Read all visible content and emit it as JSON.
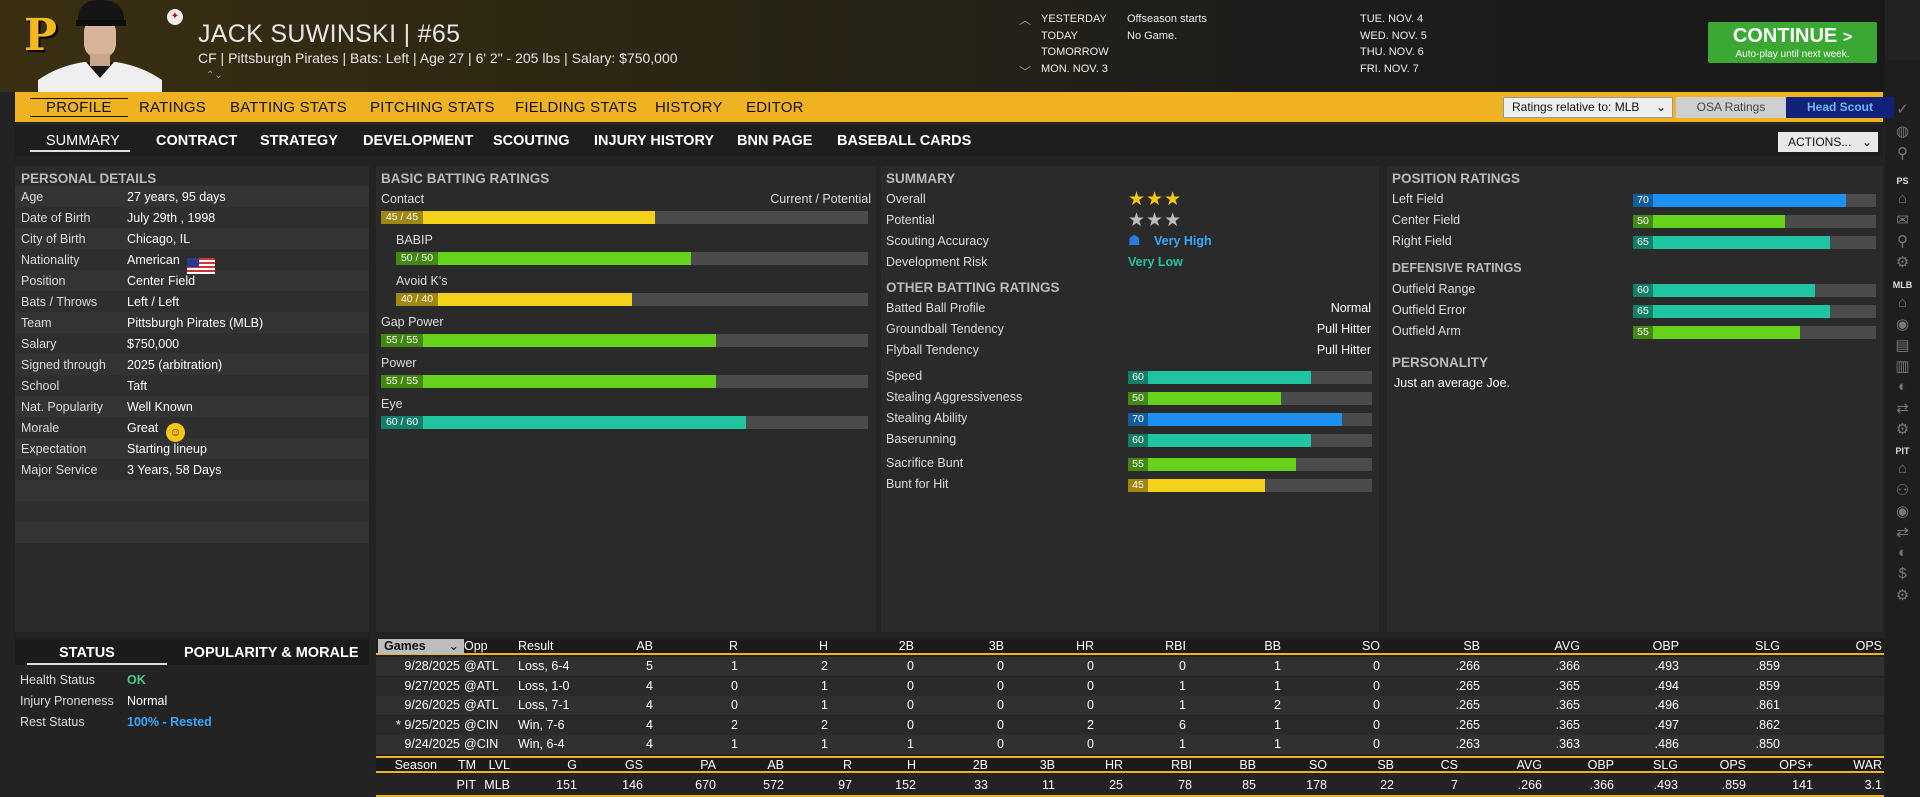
{
  "header": {
    "team_logo": "P",
    "player_name": "JACK SUWINSKI  |  #65",
    "player_info": "CF | Pittsburgh Pirates  |  Bats: Left  |  Age 27  |  6' 2\"  - 205 lbs  |  Salary: $750,000",
    "schedule": [
      {
        "day": "YESTERDAY",
        "event": "Offseason starts"
      },
      {
        "day": "TODAY",
        "event": "No Game."
      },
      {
        "day": "TOMORROW",
        "event": ""
      },
      {
        "day": "MON. NOV. 3",
        "event": ""
      }
    ],
    "dates": [
      "TUE. NOV. 4",
      "WED. NOV. 5",
      "THU. NOV. 6",
      "FRI. NOV. 7"
    ],
    "continue_label": "CONTINUE",
    "continue_sub": "Auto-play until next week."
  },
  "tabs": [
    "PROFILE",
    "RATINGS",
    "BATTING STATS",
    "PITCHING STATS",
    "FIELDING STATS",
    "HISTORY",
    "EDITOR"
  ],
  "ratings_select": "Ratings relative to: MLB",
  "osa_label": "OSA Ratings",
  "scout_label": "Head Scout",
  "subtabs": [
    "SUMMARY",
    "CONTRACT",
    "STRATEGY",
    "DEVELOPMENT",
    "SCOUTING",
    "INJURY HISTORY",
    "BNN PAGE",
    "BASEBALL CARDS"
  ],
  "actions_label": "ACTIONS...",
  "personal": {
    "title": "PERSONAL DETAILS",
    "rows": [
      {
        "label": "Age",
        "value": "27 years, 95 days"
      },
      {
        "label": "Date of Birth",
        "value": "July 29th , 1998"
      },
      {
        "label": "City of Birth",
        "value": "Chicago, IL"
      },
      {
        "label": "Nationality",
        "value": "American"
      },
      {
        "label": "Position",
        "value": "Center Field"
      },
      {
        "label": "Bats / Throws",
        "value": "Left / Left"
      },
      {
        "label": "Team",
        "value": "Pittsburgh Pirates (MLB)"
      },
      {
        "label": "Salary",
        "value": "$750,000"
      },
      {
        "label": "Signed through",
        "value": "2025 (arbitration)"
      },
      {
        "label": "School",
        "value": "Taft"
      },
      {
        "label": "Nat. Popularity",
        "value": "Well Known"
      },
      {
        "label": "Morale",
        "value": "Great"
      },
      {
        "label": "Expectation",
        "value": "Starting lineup"
      },
      {
        "label": "Major Service",
        "value": "3 Years, 58 Days"
      }
    ]
  },
  "batting": {
    "title": "BASIC BATTING RATINGS",
    "cp_label": "Current / Potential",
    "ratings": [
      {
        "label": "Contact",
        "value": "45 / 45",
        "cur": 45,
        "color": "#f4d21c",
        "indent": false
      },
      {
        "label": "BABIP",
        "value": "50 / 50",
        "cur": 50,
        "color": "#67d21c",
        "indent": true
      },
      {
        "label": "Avoid K's",
        "value": "40 / 40",
        "cur": 40,
        "color": "#f4d21c",
        "indent": true
      },
      {
        "label": "Gap Power",
        "value": "55 / 55",
        "cur": 55,
        "color": "#67d21c",
        "indent": false
      },
      {
        "label": "Power",
        "value": "55 / 55",
        "cur": 55,
        "color": "#67d21c",
        "indent": false
      },
      {
        "label": "Eye",
        "value": "60 / 60",
        "cur": 60,
        "color": "#1fc4a0",
        "indent": false
      }
    ]
  },
  "summary": {
    "title": "SUMMARY",
    "overall_label": "Overall",
    "overall_stars": 3,
    "potential_label": "Potential",
    "potential_stars": 3,
    "accuracy_label": "Scouting Accuracy",
    "accuracy_value": "Very High",
    "risk_label": "Development Risk",
    "risk_value": "Very Low",
    "other_title": "OTHER BATTING RATINGS",
    "other": [
      {
        "label": "Batted Ball Profile",
        "value": "Normal"
      },
      {
        "label": "Groundball Tendency",
        "value": "Pull Hitter"
      },
      {
        "label": "Flyball Tendency",
        "value": "Pull Hitter"
      }
    ],
    "running": [
      {
        "label": "Speed",
        "value": "60",
        "cur": 60,
        "color": "#1fc4a0"
      },
      {
        "label": "Stealing Aggressiveness",
        "value": "50",
        "cur": 50,
        "color": "#67d21c"
      },
      {
        "label": "Stealing Ability",
        "value": "70",
        "cur": 70,
        "color": "#1e90f0"
      },
      {
        "label": "Baserunning",
        "value": "60",
        "cur": 60,
        "color": "#1fc4a0"
      },
      {
        "label": "Sacrifice Bunt",
        "value": "55",
        "cur": 55,
        "color": "#67d21c"
      },
      {
        "label": "Bunt for Hit",
        "value": "45",
        "cur": 45,
        "color": "#f4d21c"
      }
    ]
  },
  "position": {
    "title": "POSITION RATINGS",
    "ratings": [
      {
        "label": "Left Field",
        "value": "70",
        "cur": 70,
        "color": "#1e90f0"
      },
      {
        "label": "Center Field",
        "value": "50",
        "cur": 50,
        "color": "#67d21c"
      },
      {
        "label": "Right Field",
        "value": "65",
        "cur": 65,
        "color": "#1fc4a0"
      }
    ],
    "def_title": "DEFENSIVE RATINGS",
    "defense": [
      {
        "label": "Outfield Range",
        "value": "60",
        "cur": 60,
        "color": "#1fc4a0"
      },
      {
        "label": "Outfield Error",
        "value": "65",
        "cur": 65,
        "color": "#1fc4a0"
      },
      {
        "label": "Outfield Arm",
        "value": "55",
        "cur": 55,
        "color": "#67d21c"
      }
    ],
    "pers_title": "PERSONALITY",
    "personality": "Just an average Joe."
  },
  "status": {
    "tab_status": "STATUS",
    "tab_popularity": "POPULARITY & MORALE",
    "rows": [
      {
        "label": "Health Status",
        "value": "OK",
        "color": "#3fd08a"
      },
      {
        "label": "Injury Proneness",
        "value": "Normal",
        "color": "#ffffff"
      },
      {
        "label": "Rest Status",
        "value": "100% - Rested",
        "color": "#38a8ff"
      }
    ]
  },
  "games": {
    "select_label": "Games",
    "headers": [
      "Opp",
      "Result",
      "AB",
      "R",
      "H",
      "2B",
      "3B",
      "HR",
      "RBI",
      "BB",
      "SO",
      "SB",
      "AVG",
      "OBP",
      "SLG",
      "OPS"
    ],
    "rows": [
      [
        "9/28/2025",
        "@ATL",
        "Loss, 6-4",
        "5",
        "1",
        "2",
        "0",
        "0",
        "0",
        "0",
        "1",
        "0",
        ".266",
        ".366",
        ".493",
        ".859"
      ],
      [
        "9/27/2025",
        "@ATL",
        "Loss, 1-0",
        "4",
        "0",
        "1",
        "0",
        "0",
        "0",
        "1",
        "1",
        "0",
        ".265",
        ".365",
        ".494",
        ".859"
      ],
      [
        "9/26/2025",
        "@ATL",
        "Loss, 7-1",
        "4",
        "0",
        "1",
        "0",
        "0",
        "0",
        "1",
        "2",
        "0",
        ".265",
        ".365",
        ".496",
        ".861"
      ],
      [
        "* 9/25/2025",
        "@CIN",
        "Win, 7-6",
        "4",
        "2",
        "2",
        "0",
        "0",
        "2",
        "6",
        "1",
        "0",
        ".265",
        ".365",
        ".497",
        ".862"
      ],
      [
        "9/24/2025",
        "@CIN",
        "Win, 6-4",
        "4",
        "1",
        "1",
        "1",
        "0",
        "0",
        "1",
        "1",
        "0",
        ".263",
        ".363",
        ".486",
        ".850"
      ]
    ]
  },
  "season": {
    "headers": [
      "Season",
      "TM",
      "LVL",
      "G",
      "GS",
      "PA",
      "AB",
      "R",
      "H",
      "2B",
      "3B",
      "HR",
      "RBI",
      "BB",
      "SO",
      "SB",
      "CS",
      "AVG",
      "OBP",
      "SLG",
      "OPS",
      "OPS+",
      "WAR"
    ],
    "row": [
      "",
      "PIT",
      "MLB",
      "151",
      "146",
      "670",
      "572",
      "97",
      "152",
      "33",
      "11",
      "25",
      "78",
      "85",
      "178",
      "22",
      "7",
      ".266",
      ".366",
      ".493",
      ".859",
      "141",
      "3.1"
    ]
  },
  "rail": {
    "labels": [
      "PS",
      "MLB",
      "PIT"
    ]
  }
}
